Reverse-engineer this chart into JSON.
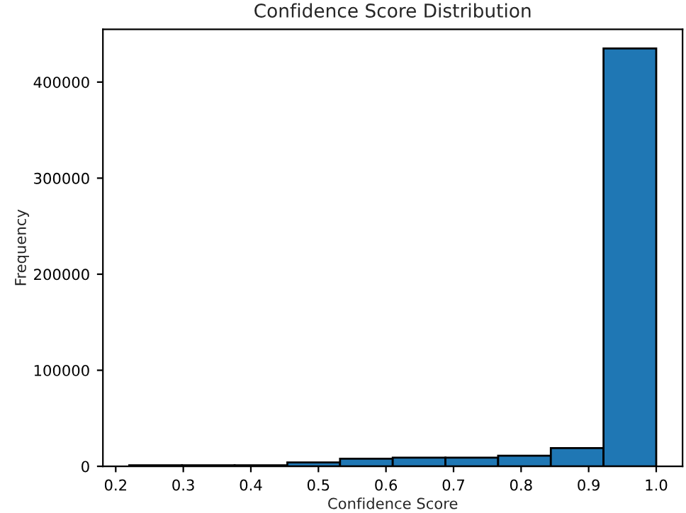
{
  "chart_data": {
    "type": "histogram",
    "title": "Confidence Score Distribution",
    "xlabel": "Confidence Score",
    "ylabel": "Frequency",
    "bins": [
      0.22,
      0.298,
      0.376,
      0.454,
      0.532,
      0.61,
      0.688,
      0.766,
      0.844,
      0.922,
      1.0
    ],
    "values": [
      1000,
      1000,
      1000,
      4000,
      8000,
      9000,
      9000,
      11000,
      19000,
      435000
    ],
    "color": "#1f77b4",
    "xlim": [
      0.181,
      1.039
    ],
    "xticks": [
      {
        "value": 0.2,
        "label": "0.2"
      },
      {
        "value": 0.3,
        "label": "0.3"
      },
      {
        "value": 0.4,
        "label": "0.4"
      },
      {
        "value": 0.5,
        "label": "0.5"
      },
      {
        "value": 0.6,
        "label": "0.6"
      },
      {
        "value": 0.7,
        "label": "0.7"
      },
      {
        "value": 0.8,
        "label": "0.8"
      },
      {
        "value": 0.9,
        "label": "0.9"
      },
      {
        "value": 1.0,
        "label": "1.0"
      }
    ],
    "ylim": [
      0,
      455000
    ],
    "yticks": [
      0,
      100000,
      200000,
      300000,
      400000
    ],
    "grid": false
  }
}
